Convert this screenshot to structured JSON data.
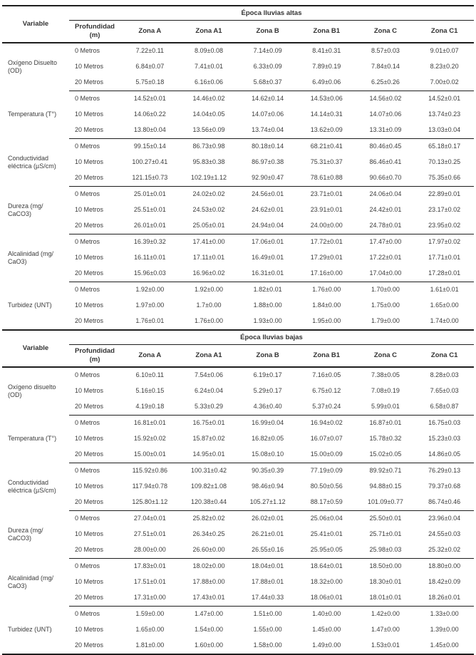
{
  "document": {
    "background": "#ffffff",
    "text_color": "#3c3c3c",
    "line_color": "#1e1e1e"
  },
  "tables": [
    {
      "season_header": "Época lluvias altas",
      "variable_header": "Variable",
      "depth_header": "Profundidad (m)",
      "zone_headers": [
        "Zona A",
        "Zona A1",
        "Zona B",
        "Zona B1",
        "Zona C",
        "Zona C1"
      ],
      "groups": [
        {
          "variable": "Oxígeno Disuelto (OD)",
          "rows": [
            {
              "depth": "0 Metros",
              "values": [
                "7.22±0.11",
                "8.09±0.08",
                "7.14±0.09",
                "8.41±0.31",
                "8.57±0.03",
                "9.01±0.07"
              ]
            },
            {
              "depth": "10 Metros",
              "values": [
                "6.84±0.07",
                "7.41±0.01",
                "6.33±0.09",
                "7.89±0.19",
                "7.84±0.14",
                "8.23±0.20"
              ]
            },
            {
              "depth": "20 Metros",
              "values": [
                "5.75±0.18",
                "6.16±0.06",
                "5.68±0.37",
                "6.49±0.06",
                "6.25±0.26",
                "7.00±0.02"
              ]
            }
          ]
        },
        {
          "variable": "Temperatura (T°)",
          "rows": [
            {
              "depth": "0 Metros",
              "values": [
                "14.52±0.01",
                "14.46±0.02",
                "14.62±0.14",
                "14.53±0.06",
                "14.56±0.02",
                "14.52±0.01"
              ]
            },
            {
              "depth": "10 Metros",
              "values": [
                "14.06±0.22",
                "14.04±0.05",
                "14.07±0.06",
                "14.14±0.31",
                "14.07±0.06",
                "13.74±0.23"
              ]
            },
            {
              "depth": "20 Metros",
              "values": [
                "13.80±0.04",
                "13.56±0.09",
                "13.74±0.04",
                "13.62±0.09",
                "13.31±0.09",
                "13.03±0.04"
              ]
            }
          ]
        },
        {
          "variable": "Conductividad eléctrica (µS/cm)",
          "rows": [
            {
              "depth": "0 Metros",
              "values": [
                "99.15±0.14",
                "86.73±0.98",
                "80.18±0.14",
                "68.21±0.41",
                "80.46±0.45",
                "65.18±0.17"
              ]
            },
            {
              "depth": "10 Metros",
              "values": [
                "100.27±0.41",
                "95.83±0.38",
                "86.97±0.38",
                "75.31±0.37",
                "86.46±0.41",
                "70.13±0.25"
              ]
            },
            {
              "depth": "20 Metros",
              "values": [
                "121.15±0.73",
                "102.19±1.12",
                "92.90±0.47",
                "78.61±0.88",
                "90.66±0.70",
                "75.35±0.66"
              ]
            }
          ]
        },
        {
          "variable": "Dureza (mg/ CaCO3)",
          "rows": [
            {
              "depth": "0 Metros",
              "values": [
                "25.01±0.01",
                "24.02±0.02",
                "24.56±0.01",
                "23.71±0.01",
                "24.06±0.04",
                "22.89±0.01"
              ]
            },
            {
              "depth": "10 Metros",
              "values": [
                "25.51±0.01",
                "24.53±0.02",
                "24.62±0.01",
                "23.91±0.01",
                "24.42±0.01",
                "23.17±0.02"
              ]
            },
            {
              "depth": "20 Metros",
              "values": [
                "26.01±0.01",
                "25.05±0.01",
                "24.94±0.04",
                "24.00±0.00",
                "24.78±0.01",
                "23.95±0.02"
              ]
            }
          ]
        },
        {
          "variable": "Alcalinidad (mg/ CaO3)",
          "rows": [
            {
              "depth": "0 Metros",
              "values": [
                "16.39±0.32",
                "17.41±0.00",
                "17.06±0.01",
                "17.72±0.01",
                "17.47±0.00",
                "17.97±0.02"
              ]
            },
            {
              "depth": "10 Metros",
              "values": [
                "16.11±0.01",
                "17.11±0.01",
                "16.49±0.01",
                "17.29±0.01",
                "17.22±0.01",
                "17.71±0.01"
              ]
            },
            {
              "depth": "20 Metros",
              "values": [
                "15.96±0.03",
                "16.96±0.02",
                "16.31±0.01",
                "17.16±0.00",
                "17.04±0.00",
                "17.28±0.01"
              ]
            }
          ]
        },
        {
          "variable": "Turbidez (UNT)",
          "rows": [
            {
              "depth": "0 Metros",
              "values": [
                "1.92±0.00",
                "1.92±0.00",
                "1.82±0.01",
                "1.76±0.00",
                "1.70±0.00",
                "1.61±0.01"
              ]
            },
            {
              "depth": "10 Metros",
              "values": [
                "1.97±0.00",
                "1.7±0.00",
                "1.88±0.00",
                "1.84±0.00",
                "1.75±0.00",
                "1.65±0.00"
              ]
            },
            {
              "depth": "20 Metros",
              "values": [
                "1.76±0.01",
                "1.76±0.00",
                "1.93±0.00",
                "1.95±0.00",
                "1.79±0.00",
                "1.74±0.00"
              ]
            }
          ]
        }
      ]
    },
    {
      "season_header": "Época lluvias bajas",
      "variable_header": "Variable",
      "depth_header": "Profundidad (m)",
      "zone_headers": [
        "Zona A",
        "Zona A1",
        "Zona B",
        "Zona B1",
        "Zona C",
        "Zona C1"
      ],
      "groups": [
        {
          "variable": "Oxígeno disuelto (OD)",
          "rows": [
            {
              "depth": "0 Metros",
              "values": [
                "6.10±0.11",
                "7.54±0.06",
                "6.19±0.17",
                "7.16±0.05",
                "7.38±0.05",
                "8.28±0.03"
              ]
            },
            {
              "depth": "10 Metros",
              "values": [
                "5.16±0.15",
                "6.24±0.04",
                "5.29±0.17",
                "6.75±0.12",
                "7.08±0.19",
                "7.65±0.03"
              ]
            },
            {
              "depth": "20 Metros",
              "values": [
                "4.19±0.18",
                "5.33±0.29",
                "4.36±0.40",
                "5.37±0.24",
                "5.99±0.01",
                "6.58±0.87"
              ]
            }
          ]
        },
        {
          "variable": "Temperatura (T°)",
          "rows": [
            {
              "depth": "0 Metros",
              "values": [
                "16.81±0.01",
                "16.75±0.01",
                "16.99±0.04",
                "16.94±0.02",
                "16.87±0.01",
                "16.75±0.03"
              ]
            },
            {
              "depth": "10 Metros",
              "values": [
                "15.92±0.02",
                "15.87±0.02",
                "16.82±0.05",
                "16.07±0.07",
                "15.78±0.32",
                "15.23±0.03"
              ]
            },
            {
              "depth": "20 Metros",
              "values": [
                "15.00±0.01",
                "14.95±0.01",
                "15.08±0.10",
                "15.00±0.09",
                "15.02±0.05",
                "14.86±0.05"
              ]
            }
          ]
        },
        {
          "variable": "Conductividad eléctrica (µS/cm)",
          "rows": [
            {
              "depth": "0 Metros",
              "values": [
                "115.92±0.86",
                "100.31±0.42",
                "90.35±0.39",
                "77.19±0.09",
                "89.92±0.71",
                "76.29±0.13"
              ]
            },
            {
              "depth": "10 Metros",
              "values": [
                "117.94±0.78",
                "109.82±1.08",
                "98.46±0.94",
                "80.50±0.56",
                "94.88±0.15",
                "79.37±0.68"
              ]
            },
            {
              "depth": "20 Metros",
              "values": [
                "125.80±1.12",
                "120.38±0.44",
                "105.27±1.12",
                "88.17±0.59",
                "101.09±0.77",
                "86.74±0.46"
              ]
            }
          ]
        },
        {
          "variable": "Dureza (mg/ CaCO3)",
          "rows": [
            {
              "depth": "0 Metros",
              "values": [
                "27.04±0.01",
                "25.82±0.02",
                "26.02±0.01",
                "25.06±0.04",
                "25.50±0.01",
                "23.96±0.04"
              ]
            },
            {
              "depth": "10 Metros",
              "values": [
                "27.51±0.01",
                "26.34±0.25",
                "26.21±0.01",
                "25.41±0.01",
                "25.71±0.01",
                "24.55±0.03"
              ]
            },
            {
              "depth": "20 Metros",
              "values": [
                "28.00±0.00",
                "26.60±0.00",
                "26.55±0.16",
                "25.95±0.05",
                "25.98±0.03",
                "25.32±0.02"
              ]
            }
          ]
        },
        {
          "variable": "Alcalinidad (mg/ CaO3)",
          "rows": [
            {
              "depth": "0 Metros",
              "values": [
                "17.83±0.01",
                "18.02±0.00",
                "18.04±0.01",
                "18.64±0.01",
                "18.50±0.00",
                "18.80±0.00"
              ]
            },
            {
              "depth": "10 Metros",
              "values": [
                "17.51±0.01",
                "17.88±0.00",
                "17.88±0.01",
                "18.32±0.00",
                "18.30±0.01",
                "18.42±0.09"
              ]
            },
            {
              "depth": "20 Metros",
              "values": [
                "17.31±0.00",
                "17.43±0.01",
                "17.44±0.33",
                "18.06±0.01",
                "18.01±0.01",
                "18.26±0.01"
              ]
            }
          ]
        },
        {
          "variable": "Turbidez (UNT)",
          "rows": [
            {
              "depth": "0 Metros",
              "values": [
                "1.59±0.00",
                "1.47±0.00",
                "1.51±0.00",
                "1.40±0.00",
                "1.42±0.00",
                "1.33±0.00"
              ]
            },
            {
              "depth": "10 Metros",
              "values": [
                "1.65±0.00",
                "1.54±0.00",
                "1.55±0.00",
                "1.45±0.00",
                "1.47±0.00",
                "1.39±0.00"
              ]
            },
            {
              "depth": "20 Metros",
              "values": [
                "1.81±0.00",
                "1.60±0.00",
                "1.58±0.00",
                "1.49±0.00",
                "1.53±0.01",
                "1.45±0.00"
              ]
            }
          ]
        }
      ]
    }
  ]
}
